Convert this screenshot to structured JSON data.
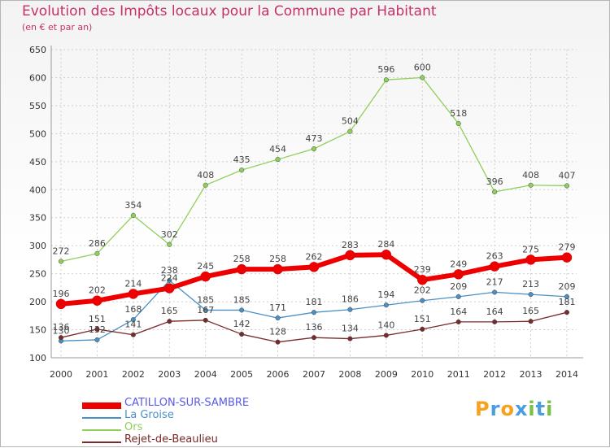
{
  "title": "Evolution des Impôts locaux pour la Commune par Habitant",
  "subtitle": "(en € et par an)",
  "logo": {
    "text": "Proxiti",
    "letters": [
      "P",
      "r",
      "o",
      "x",
      "i",
      "t",
      "i"
    ],
    "colors": [
      "#f6a21e",
      "#4a9ee0",
      "#f6a21e",
      "#4a9ee0",
      "#7ac143",
      "#4a9ee0",
      "#7ac143"
    ]
  },
  "chart_data": {
    "type": "line",
    "x": [
      "2000",
      "2001",
      "2002",
      "2003",
      "2004",
      "2005",
      "2006",
      "2007",
      "2008",
      "2009",
      "2010",
      "2011",
      "2012",
      "2013",
      "2014"
    ],
    "ylim": [
      100,
      650
    ],
    "yticks": [
      100,
      150,
      200,
      250,
      300,
      350,
      400,
      450,
      500,
      550,
      600,
      650
    ],
    "grid": true,
    "legend_position": "bottom-left",
    "series": [
      {
        "name": "CATILLON-SUR-SAMBRE",
        "color": "#ee0000",
        "values": [
          196,
          202,
          214,
          224,
          245,
          258,
          258,
          262,
          283,
          284,
          239,
          249,
          263,
          275,
          279
        ]
      },
      {
        "name": "La Groise",
        "color": "#4a90c4",
        "values": [
          130,
          132,
          168,
          238,
          185,
          185,
          171,
          181,
          186,
          194,
          202,
          209,
          217,
          213,
          209
        ]
      },
      {
        "name": "Ors",
        "color": "#8fd05a",
        "values": [
          272,
          286,
          354,
          302,
          408,
          435,
          454,
          473,
          504,
          596,
          600,
          518,
          396,
          408,
          407
        ]
      },
      {
        "name": "Rejet-de-Beaulieu",
        "color": "#7a2a2a",
        "values": [
          136,
          151,
          141,
          165,
          167,
          142,
          128,
          136,
          134,
          140,
          151,
          164,
          164,
          165,
          181
        ]
      }
    ]
  }
}
